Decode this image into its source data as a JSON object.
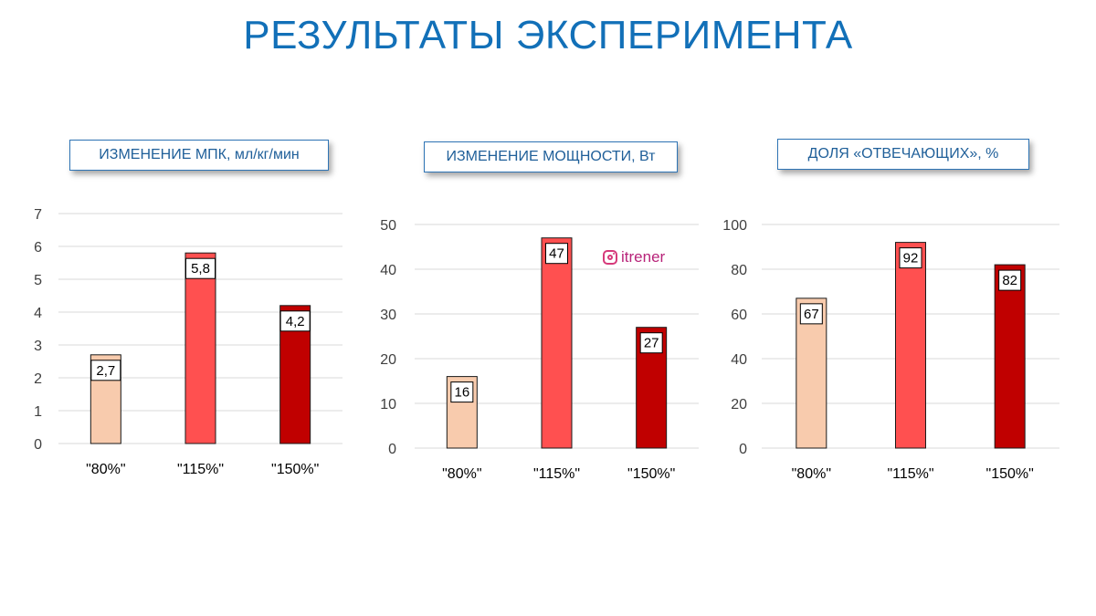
{
  "slide": {
    "title": "РЕЗУЛЬТАТЫ ЭКСПЕРИМЕНТА"
  },
  "watermark": {
    "icon": "instagram-icon",
    "text": "itrener"
  },
  "chart_data": [
    {
      "type": "bar",
      "title": "ИЗМЕНЕНИЕ  МПК, мл/кг/мин",
      "categories": [
        "\"80%\"",
        "\"115%\"",
        "\"150%\""
      ],
      "values": [
        2.7,
        5.8,
        4.2
      ],
      "data_labels": [
        "2,7",
        "5,8",
        "4,2"
      ],
      "ylim": [
        0,
        7
      ],
      "yticks": [
        "0",
        "1",
        "2",
        "3",
        "4",
        "5",
        "6",
        "7"
      ],
      "grid": true,
      "colors": [
        "#f8cbad",
        "#ff5050",
        "#c00000"
      ]
    },
    {
      "type": "bar",
      "title": "ИЗМЕНЕНИЕ  МОЩНОСТИ, Вт",
      "categories": [
        "\"80%\"",
        "\"115%\"",
        "\"150%\""
      ],
      "values": [
        16,
        47,
        27
      ],
      "data_labels": [
        "16",
        "47",
        "27"
      ],
      "ylim": [
        0,
        50
      ],
      "yticks": [
        "0",
        "10",
        "20",
        "30",
        "40",
        "50"
      ],
      "grid": true,
      "colors": [
        "#f8cbad",
        "#ff5050",
        "#c00000"
      ]
    },
    {
      "type": "bar",
      "title": "ДОЛЯ «ОТВЕЧАЮЩИХ», %",
      "categories": [
        "\"80%\"",
        "\"115%\"",
        "\"150%\""
      ],
      "values": [
        67,
        92,
        82
      ],
      "data_labels": [
        "67",
        "92",
        "82"
      ],
      "ylim": [
        0,
        100
      ],
      "yticks": [
        "0",
        "20",
        "40",
        "60",
        "80",
        "100"
      ],
      "grid": true,
      "colors": [
        "#f8cbad",
        "#ff5050",
        "#c00000"
      ]
    }
  ]
}
